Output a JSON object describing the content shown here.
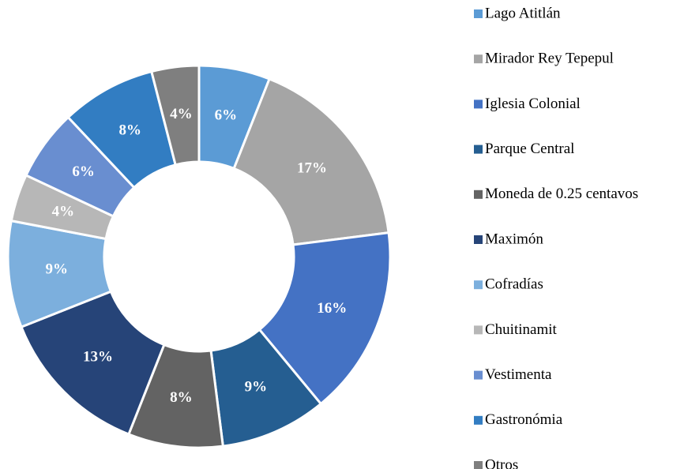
{
  "chart_data": {
    "type": "pie",
    "categories": [
      "Lago Atitlán",
      "Mirador Rey Tepepul",
      "Iglesia Colonial",
      "Parque Central",
      "Moneda de 0.25 centavos",
      "Maximón",
      "Cofradías",
      "Chuitinamit",
      "Vestimenta",
      "Gastronómia",
      "Otros"
    ],
    "values": [
      6,
      17,
      16,
      9,
      8,
      13,
      9,
      4,
      6,
      8,
      4
    ],
    "value_labels": [
      "6%",
      "17%",
      "16%",
      "9%",
      "8%",
      "13%",
      "9%",
      "4%",
      "6%",
      "8%",
      "4%"
    ],
    "colors": [
      "#5b9bd5",
      "#a5a5a5",
      "#4472c4",
      "#255e91",
      "#636363",
      "#264478",
      "#7cafdd",
      "#b7b7b7",
      "#698ed0",
      "#327dc2",
      "#7f7f7f"
    ],
    "legend": "right"
  }
}
